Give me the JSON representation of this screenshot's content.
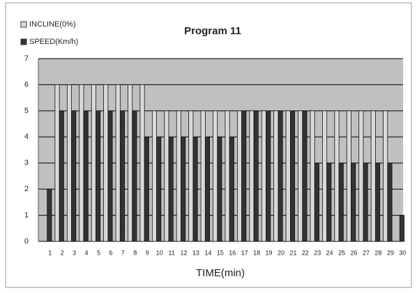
{
  "chart_data": {
    "type": "bar",
    "title": "Program 11",
    "x_label": "TIME(min)",
    "categories": [
      "1",
      "2",
      "3",
      "4",
      "5",
      "6",
      "7",
      "8",
      "9",
      "10",
      "11",
      "12",
      "13",
      "14",
      "15",
      "16",
      "17",
      "18",
      "19",
      "20",
      "21",
      "22",
      "23",
      "24",
      "25",
      "26",
      "27",
      "28",
      "29",
      "30"
    ],
    "series": [
      {
        "name": "INCLINE(0%)",
        "color": "#d9d9d9",
        "values": [
          0,
          6,
          6,
          6,
          6,
          6,
          6,
          6,
          6,
          5,
          5,
          5,
          5,
          5,
          5,
          5,
          5,
          5,
          5,
          5,
          5,
          5,
          5,
          5,
          5,
          5,
          5,
          5,
          5,
          0
        ]
      },
      {
        "name": "SPEED(Km/h)",
        "color": "#333333",
        "values": [
          2,
          5,
          5,
          5,
          5,
          5,
          5,
          5,
          4,
          4,
          4,
          4,
          4,
          4,
          4,
          4,
          5,
          5,
          5,
          5,
          5,
          5,
          3,
          3,
          3,
          3,
          3,
          3,
          3,
          1
        ]
      }
    ],
    "ylim": [
      0,
      7
    ],
    "yticks": [
      0,
      1,
      2,
      3,
      4,
      5,
      6,
      7
    ],
    "grid": true
  }
}
